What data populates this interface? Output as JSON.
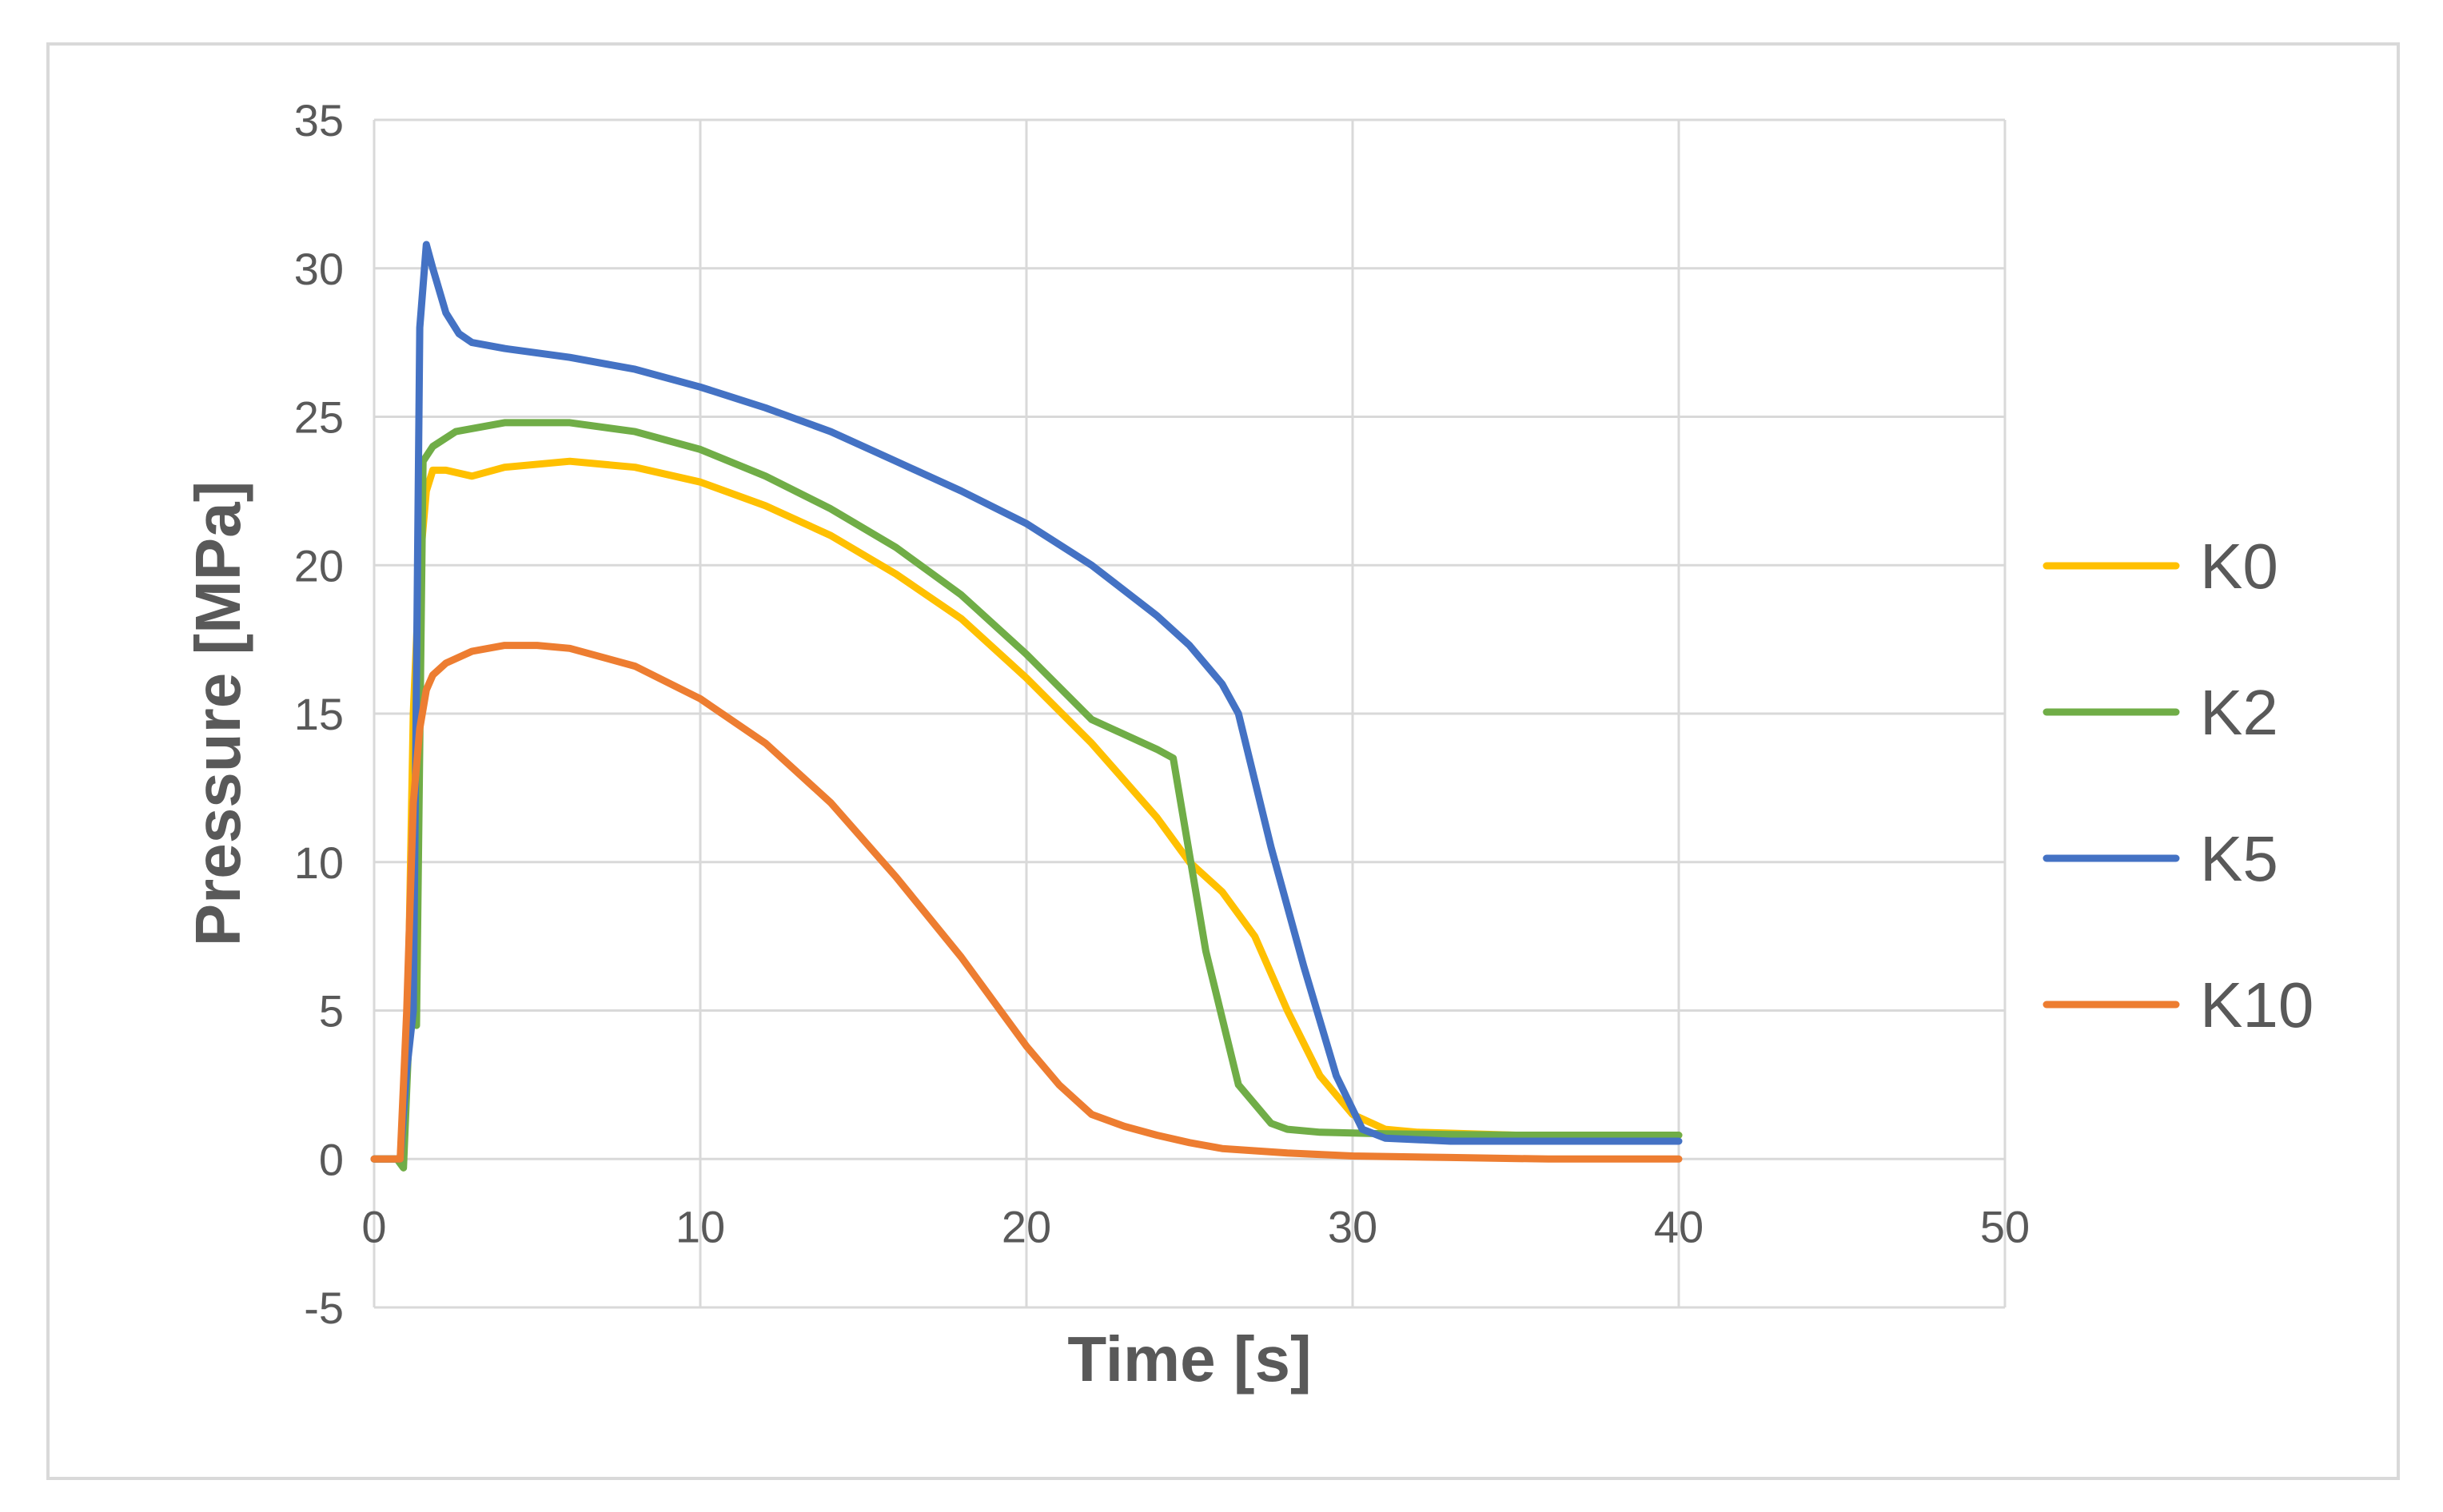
{
  "chart_data": {
    "type": "line",
    "title": "",
    "xlabel": "Time [s]",
    "ylabel": "Pressure [MPa]",
    "xlim": [
      0,
      50
    ],
    "ylim": [
      -5,
      35
    ],
    "xticks": [
      0,
      10,
      20,
      30,
      40,
      50
    ],
    "yticks": [
      -5,
      0,
      5,
      10,
      15,
      20,
      25,
      30,
      35
    ],
    "grid": true,
    "legend_position": "right",
    "series": [
      {
        "name": "K0",
        "color": "#FFC000",
        "x": [
          0,
          0.8,
          1.0,
          1.2,
          1.4,
          1.6,
          1.8,
          2.2,
          3,
          4,
          6,
          8,
          10,
          12,
          14,
          16,
          18,
          20,
          22,
          24,
          25,
          26,
          27,
          28,
          29,
          30,
          31,
          32,
          35,
          38,
          40
        ],
        "y": [
          0,
          0,
          3,
          15,
          20,
          22.5,
          23.2,
          23.2,
          23.0,
          23.3,
          23.5,
          23.3,
          22.8,
          22.0,
          21.0,
          19.7,
          18.2,
          16.2,
          14.0,
          11.5,
          10.0,
          9.0,
          7.5,
          5.0,
          2.8,
          1.5,
          1.0,
          0.9,
          0.8,
          0.8,
          0.8
        ]
      },
      {
        "name": "K2",
        "color": "#70AD47",
        "x": [
          0,
          0.7,
          0.9,
          1.1,
          1.3,
          1.5,
          1.8,
          2.5,
          4,
          6,
          8,
          10,
          12,
          14,
          16,
          18,
          20,
          22,
          24,
          24.5,
          25.5,
          26.5,
          27.5,
          28,
          29,
          31,
          35,
          40
        ],
        "y": [
          0,
          0,
          -0.3,
          5,
          4.5,
          23.5,
          24.0,
          24.5,
          24.8,
          24.8,
          24.5,
          23.9,
          23.0,
          21.9,
          20.6,
          19.0,
          17.0,
          14.8,
          13.8,
          13.5,
          7,
          2.5,
          1.2,
          1.0,
          0.9,
          0.85,
          0.8,
          0.8
        ]
      },
      {
        "name": "K5",
        "color": "#4472C4",
        "x": [
          0,
          0.8,
          1.0,
          1.2,
          1.4,
          1.6,
          1.8,
          2.2,
          2.6,
          3,
          4,
          6,
          8,
          10,
          12,
          14,
          16,
          18,
          20,
          22,
          24,
          25,
          26,
          26.5,
          27.5,
          28.5,
          29.5,
          30.3,
          31,
          33,
          36,
          40
        ],
        "y": [
          0,
          0,
          3,
          5,
          28,
          30.8,
          30.0,
          28.5,
          27.8,
          27.5,
          27.3,
          27.0,
          26.6,
          26.0,
          25.3,
          24.5,
          23.5,
          22.5,
          21.4,
          20.0,
          18.3,
          17.3,
          16.0,
          15.0,
          10.5,
          6.5,
          2.8,
          1.0,
          0.7,
          0.6,
          0.6,
          0.6
        ]
      },
      {
        "name": "K10",
        "color": "#ED7D31",
        "x": [
          0,
          0.8,
          1.0,
          1.2,
          1.4,
          1.6,
          1.8,
          2.2,
          3,
          4,
          5,
          6,
          8,
          10,
          12,
          14,
          16,
          18,
          19,
          20,
          21,
          22,
          23,
          24,
          25,
          26,
          28,
          30,
          33,
          36,
          40
        ],
        "y": [
          0,
          0,
          5,
          12,
          14.5,
          15.8,
          16.3,
          16.7,
          17.1,
          17.3,
          17.3,
          17.2,
          16.6,
          15.5,
          14.0,
          12.0,
          9.5,
          6.8,
          5.3,
          3.8,
          2.5,
          1.5,
          1.1,
          0.8,
          0.55,
          0.35,
          0.2,
          0.1,
          0.05,
          0.0,
          0.0
        ]
      }
    ]
  }
}
